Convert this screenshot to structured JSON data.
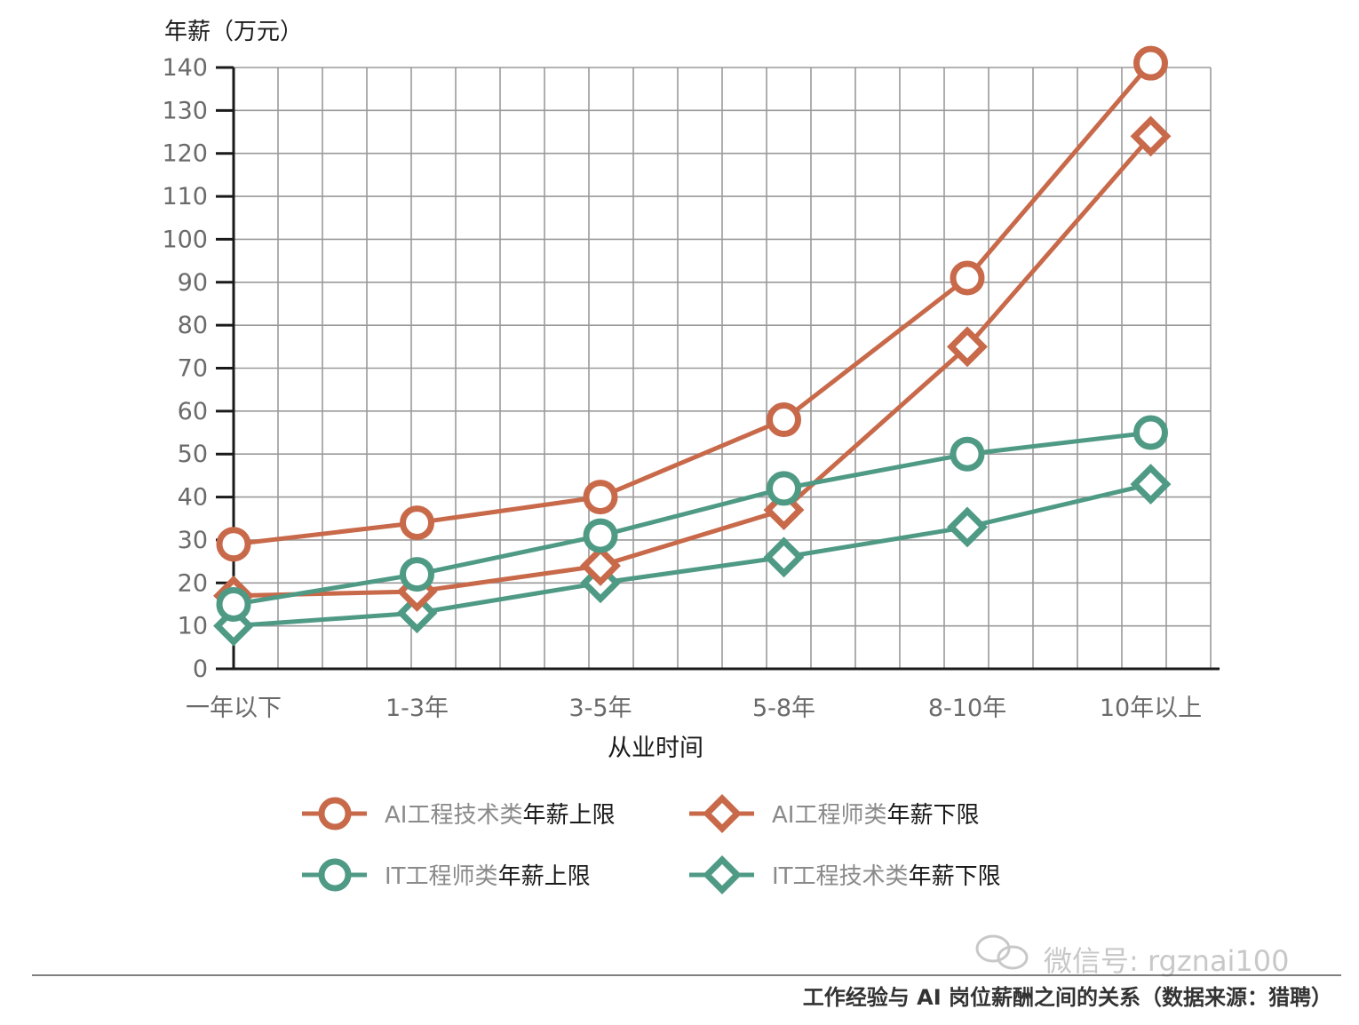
{
  "chart_data": {
    "type": "line",
    "ylabel": "年薪（万元）",
    "xlabel": "从业时间",
    "categories": [
      "一年以下",
      "1-3年",
      "3-5年",
      "5-8年",
      "8-10年",
      "10年以上"
    ],
    "ylim": [
      0,
      140
    ],
    "yticks": [
      0,
      10,
      20,
      30,
      40,
      50,
      60,
      70,
      80,
      90,
      100,
      110,
      120,
      130,
      140
    ],
    "grid": true,
    "series": [
      {
        "name_part1": "AI工程技术类",
        "name_part2": "年薪上限",
        "marker": "circle",
        "color": "#c8694a",
        "values": [
          29,
          34,
          40,
          58,
          91,
          141
        ]
      },
      {
        "name_part1": "AI工程师类",
        "name_part2": "年薪下限",
        "marker": "diamond",
        "color": "#c8694a",
        "values": [
          17,
          18,
          24,
          37,
          75,
          124
        ]
      },
      {
        "name_part1": "IT工程师类",
        "name_part2": "年薪上限",
        "marker": "circle",
        "color": "#4f9a85",
        "values": [
          15,
          22,
          31,
          42,
          50,
          55
        ]
      },
      {
        "name_part1": "IT工程技术类",
        "name_part2": "年薪下限",
        "marker": "diamond",
        "color": "#4f9a85",
        "values": [
          10,
          13,
          20,
          26,
          33,
          43
        ]
      }
    ],
    "legend_position": "bottom"
  },
  "watermark": "微信号: rgznai100",
  "caption": "工作经验与 AI 岗位薪酬之间的关系（数据来源：猎聘）"
}
